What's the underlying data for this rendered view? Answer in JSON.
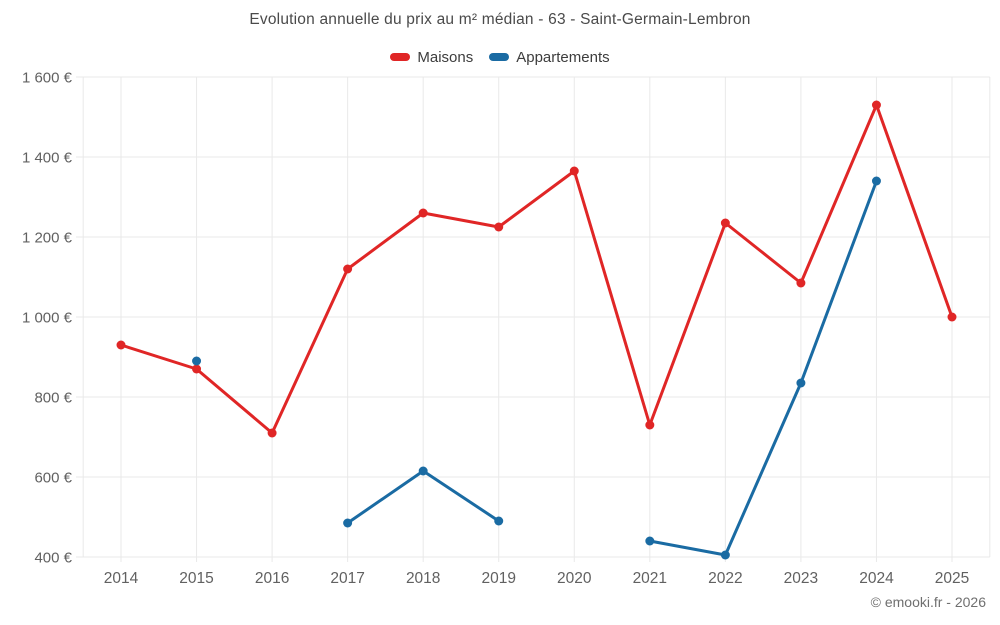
{
  "chart": {
    "title": "Evolution annuelle du prix au m² médian - 63 - Saint-Germain-Lembron",
    "footer": "© emooki.fr - 2026"
  },
  "chart_data": {
    "type": "line",
    "title": "Evolution annuelle du prix au m² médian - 63 - Saint-Germain-Lembron",
    "x": [
      2014,
      2015,
      2016,
      2017,
      2018,
      2019,
      2020,
      2021,
      2022,
      2023,
      2024,
      2025
    ],
    "series": [
      {
        "name": "Maisons",
        "color": "#e02626",
        "values": [
          930,
          870,
          710,
          1120,
          1260,
          1225,
          1365,
          730,
          1235,
          1085,
          1530,
          1000
        ]
      },
      {
        "name": "Appartements",
        "color": "#1a6ba3",
        "values": [
          null,
          890,
          null,
          485,
          615,
          490,
          null,
          440,
          405,
          835,
          1340,
          null
        ]
      }
    ],
    "ylim": [
      400,
      1600
    ],
    "yticks": [
      400,
      600,
      800,
      1000,
      1200,
      1400,
      1600
    ],
    "ytick_labels": [
      "400 €",
      "600 €",
      "800 €",
      "1 000 €",
      "1 200 €",
      "1 400 €",
      "1 600 €"
    ],
    "grid": true,
    "legend_position": "top",
    "tick_color": "#616161",
    "grid_color": "#e9e9e9"
  }
}
